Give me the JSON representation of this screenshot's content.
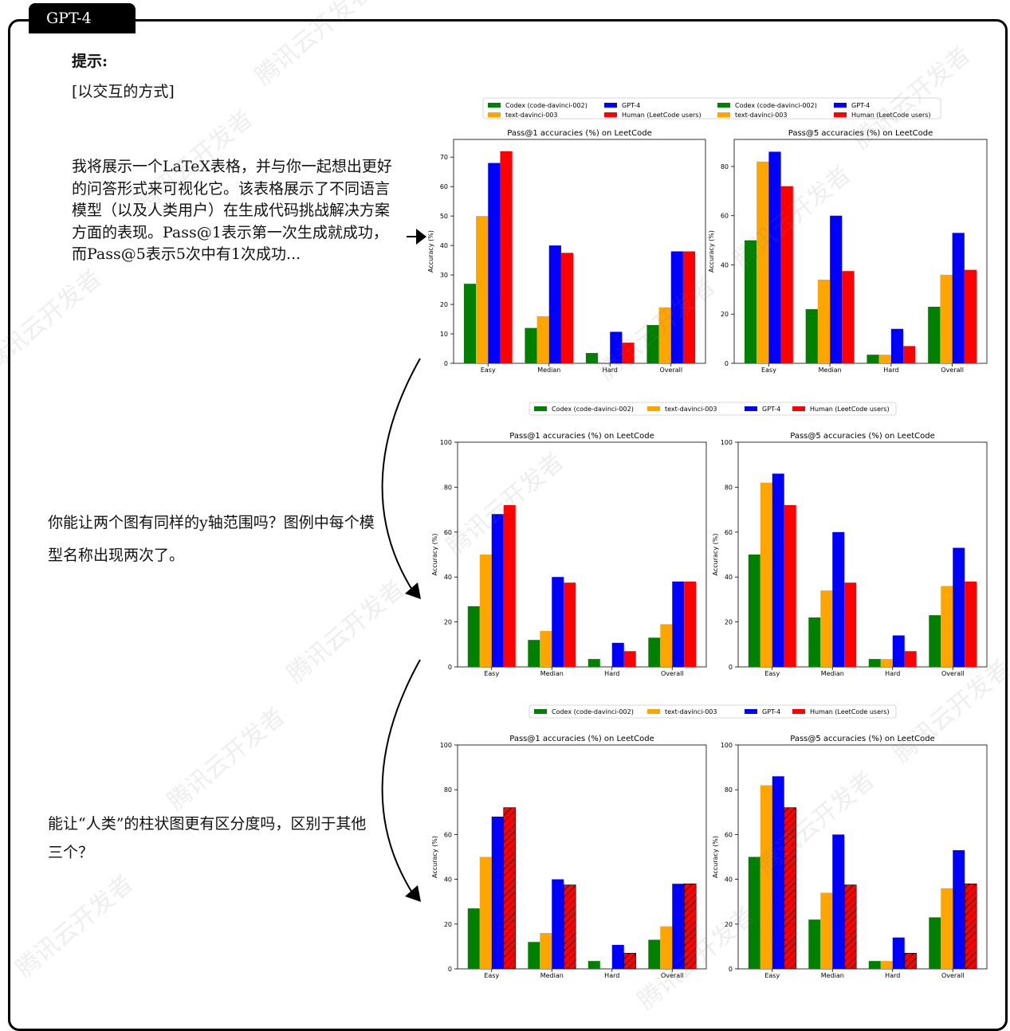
{
  "header": {
    "tag": "GPT-4"
  },
  "prompt": {
    "title": "提示:",
    "mode": "[以交互的方式]",
    "body": "我将展示一个LaTeX表格，并与你一起想出更好的问答形式来可视化它。该表格展示了不同语言模型（以及人类用户）在生成代码挑战解决方案方面的表现。Pass@1表示第一次生成就成功，而Pass@5表示5次中有1次成功..."
  },
  "questions": [
    "你能让两个图有同样的y轴范围吗？图例中每个模型名称出现两次了。",
    "能让“人类”的柱状图更有区分度吗，区别于其他三个？"
  ],
  "watermark": "腾讯云开发者",
  "chart_data": {
    "type": "bar",
    "categories": [
      "Easy",
      "Median",
      "Hard",
      "Overall"
    ],
    "ylabel": "Accuracy (%)",
    "series_names": [
      "Codex (code-davinci-002)",
      "text-davinci-003",
      "GPT-4",
      "Human (LeetCode users)"
    ],
    "colors": [
      "#008000",
      "#FFA500",
      "#0000FF",
      "#FF0000"
    ],
    "panels": [
      {
        "title": "Pass@1 accuracies (%) on LeetCode",
        "values": [
          [
            27,
            12,
            3.5,
            13
          ],
          [
            50,
            16,
            0,
            19
          ],
          [
            68,
            40,
            10.7,
            38
          ],
          [
            72,
            37.5,
            7,
            38
          ]
        ]
      },
      {
        "title": "Pass@5 accuracies (%) on LeetCode",
        "values": [
          [
            50,
            22,
            3.5,
            23
          ],
          [
            82,
            34,
            3.5,
            36
          ],
          [
            86,
            60,
            14,
            53
          ],
          [
            72,
            37.5,
            7,
            38
          ]
        ]
      }
    ],
    "ticks": {
      "v1_left": [
        0,
        10,
        20,
        30,
        40,
        50,
        60,
        70
      ],
      "v1_right": [
        0,
        20,
        40,
        60,
        80
      ],
      "v2": [
        0,
        20,
        40,
        60,
        80,
        100
      ]
    },
    "hatch_note": "Human series hatched in third version",
    "ylim": {
      "v1_left": [
        0,
        76
      ],
      "v1_right": [
        0,
        91
      ],
      "v2": [
        0,
        100
      ]
    }
  }
}
